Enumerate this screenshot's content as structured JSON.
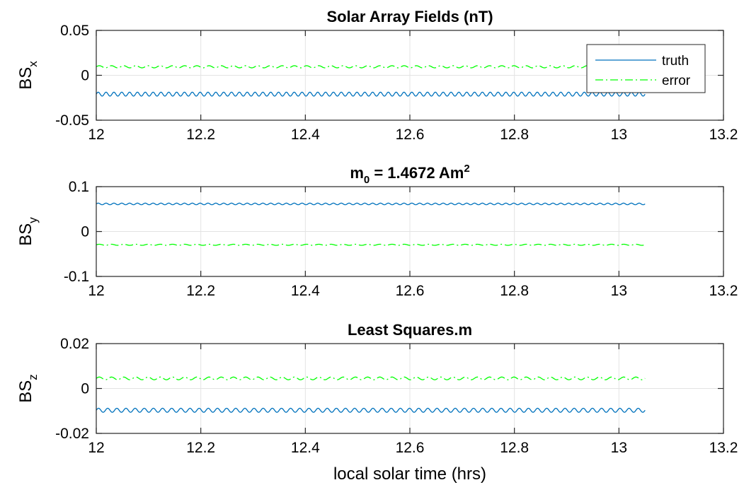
{
  "chart_data": [
    {
      "type": "line",
      "title_main": "Solar Array Fields (nT)",
      "ylabel_base": "BS",
      "ylabel_sub": "x",
      "xlim": [
        12,
        13.2
      ],
      "ylim": [
        -0.05,
        0.05
      ],
      "xticks": [
        12,
        12.2,
        12.4,
        12.6,
        12.8,
        13,
        13.2
      ],
      "xtick_labels": [
        "12",
        "12.2",
        "12.4",
        "12.6",
        "12.8",
        "13",
        "13.2"
      ],
      "yticks": [
        -0.05,
        0,
        0.05
      ],
      "ytick_labels": [
        "-0.05",
        "0",
        "0.05"
      ],
      "grid": true,
      "legend": {
        "placement": "top-right",
        "entries": [
          "truth",
          "error"
        ]
      },
      "series": [
        {
          "name": "truth",
          "style": "solid",
          "color": "#0072BD",
          "x_range": [
            12,
            13.05
          ],
          "mean": -0.021,
          "amplitude": 0.0022,
          "cycles": 70
        },
        {
          "name": "error",
          "style": "dashdot",
          "color": "#00FF00",
          "x_range": [
            12,
            13.05
          ],
          "mean": 0.0095,
          "amplitude": 0.0012,
          "cycles": 45
        }
      ]
    },
    {
      "type": "line",
      "title_main": "m",
      "title_sub": "0",
      "title_rest": " = 1.4672 Am",
      "title_sup": "2",
      "ylabel_base": "BS",
      "ylabel_sub": "y",
      "xlim": [
        12,
        13.2
      ],
      "ylim": [
        -0.1,
        0.1
      ],
      "xticks": [
        12,
        12.2,
        12.4,
        12.6,
        12.8,
        13,
        13.2
      ],
      "xtick_labels": [
        "12",
        "12.2",
        "12.4",
        "12.6",
        "12.8",
        "13",
        "13.2"
      ],
      "yticks": [
        -0.1,
        0,
        0.1
      ],
      "ytick_labels": [
        "-0.1",
        "0",
        "0.1"
      ],
      "grid": true,
      "series": [
        {
          "name": "truth",
          "style": "solid",
          "color": "#0072BD",
          "x_range": [
            12,
            13.05
          ],
          "mean": 0.0615,
          "amplitude": 0.0018,
          "cycles": 70
        },
        {
          "name": "error",
          "style": "dashdot",
          "color": "#00FF00",
          "x_range": [
            12,
            13.05
          ],
          "mean": -0.0295,
          "amplitude": 0.0012,
          "cycles": 45
        }
      ]
    },
    {
      "type": "line",
      "title_main": "Least Squares.m",
      "ylabel_base": "BS",
      "ylabel_sub": "z",
      "xlabel": "local solar time (hrs)",
      "xlim": [
        12,
        13.2
      ],
      "ylim": [
        -0.02,
        0.02
      ],
      "xticks": [
        12,
        12.2,
        12.4,
        12.6,
        12.8,
        13,
        13.2
      ],
      "xtick_labels": [
        "12",
        "12.2",
        "12.4",
        "12.6",
        "12.8",
        "13",
        "13.2"
      ],
      "yticks": [
        -0.02,
        0,
        0.02
      ],
      "ytick_labels": [
        "-0.02",
        "0",
        "0.02"
      ],
      "grid": true,
      "series": [
        {
          "name": "truth",
          "style": "solid",
          "color": "#0072BD",
          "x_range": [
            12,
            13.05
          ],
          "mean": -0.0097,
          "amplitude": 0.0009,
          "cycles": 60
        },
        {
          "name": "error",
          "style": "dashdot",
          "color": "#00FF00",
          "x_range": [
            12,
            13.05
          ],
          "mean": 0.0045,
          "amplitude": 0.0006,
          "cycles": 45
        }
      ]
    }
  ]
}
